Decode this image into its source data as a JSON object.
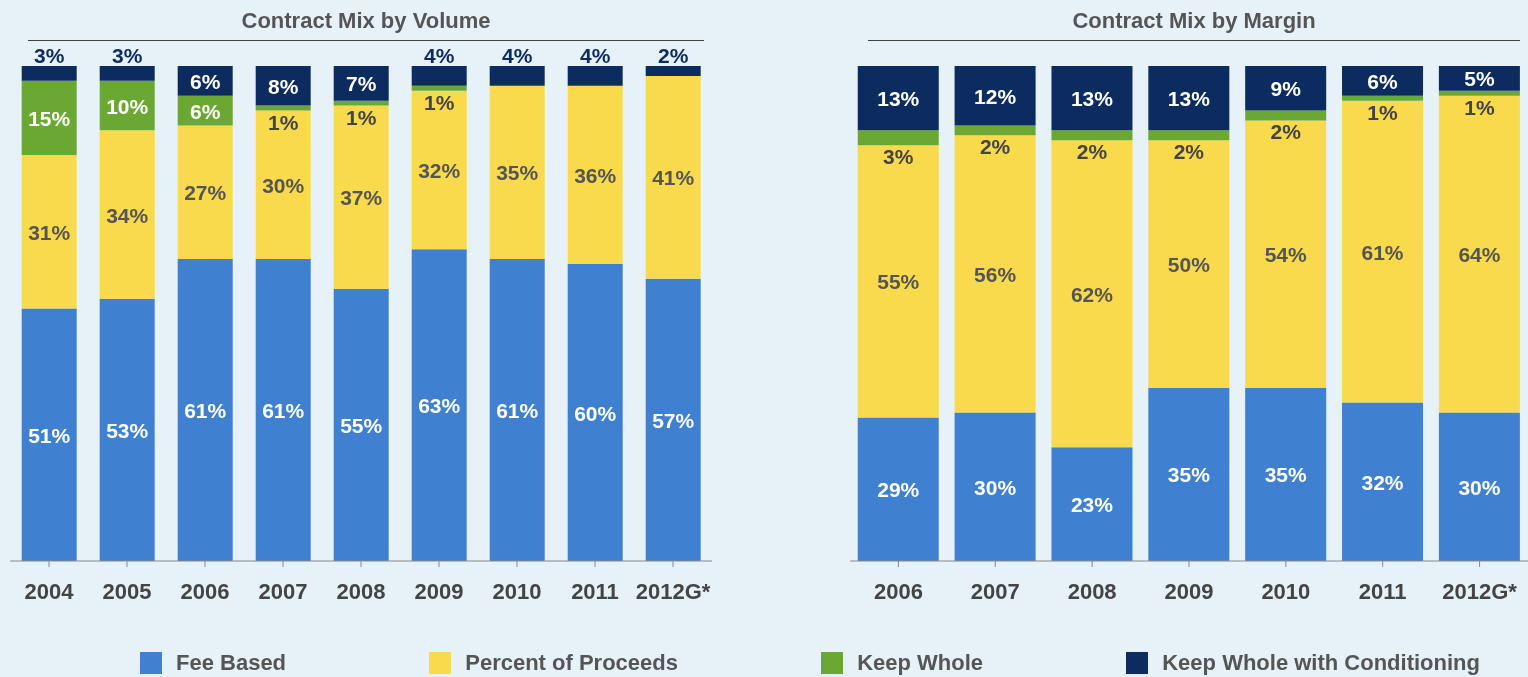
{
  "chart_data": [
    {
      "type": "bar",
      "title": "Contract Mix by Volume",
      "stacked": true,
      "legend": "bottom",
      "tick_labels": "x",
      "ylim": [
        0,
        100
      ],
      "categories": [
        "2004",
        "2005",
        "2006",
        "2007",
        "2008",
        "2009",
        "2010",
        "2011",
        "2012G*"
      ],
      "series": [
        {
          "name": "Fee Based",
          "color": "#3f80d0",
          "values": [
            51,
            53,
            61,
            61,
            55,
            63,
            61,
            60,
            57
          ],
          "value_labels": [
            "51%",
            "53%",
            "61%",
            "61%",
            "55%",
            "63%",
            "61%",
            "60%",
            "57%"
          ]
        },
        {
          "name": "Percent of Proceeds",
          "color": "#f9da4c",
          "values": [
            31,
            34,
            27,
            30,
            37,
            32,
            35,
            36,
            41
          ],
          "value_labels": [
            "31%",
            "34%",
            "27%",
            "30%",
            "37%",
            "32%",
            "35%",
            "36%",
            "41%"
          ]
        },
        {
          "name": "Keep Whole",
          "color": "#6aa833",
          "values": [
            15,
            10,
            6,
            1,
            1,
            1,
            null,
            null,
            null
          ],
          "value_labels": [
            "15%",
            "10%",
            "6%",
            "1%",
            "1%",
            "1%",
            null,
            null,
            null
          ]
        },
        {
          "name": "Keep Whole with Conditioning",
          "color": "#0c2b5e",
          "values": [
            3,
            3,
            6,
            8,
            7,
            4,
            4,
            4,
            2
          ],
          "value_labels": [
            "3%",
            "3%",
            "6%",
            "8%",
            "7%",
            "4%",
            "4%",
            "4%",
            "2%"
          ]
        }
      ]
    },
    {
      "type": "bar",
      "title": "Contract Mix by Margin",
      "stacked": true,
      "tick_labels": "x",
      "ylim": [
        0,
        100
      ],
      "categories": [
        "2006",
        "2007",
        "2008",
        "2009",
        "2010",
        "2011",
        "2012G*"
      ],
      "series": [
        {
          "color": "#3f80d0",
          "values": [
            29,
            30,
            23,
            35,
            35,
            32,
            30
          ],
          "value_labels": [
            "29%",
            "30%",
            "23%",
            "35%",
            "35%",
            "32%",
            "30%"
          ]
        },
        {
          "color": "#f9da4c",
          "values": [
            55,
            56,
            62,
            50,
            54,
            61,
            64
          ],
          "value_labels": [
            "55%",
            "56%",
            "62%",
            "50%",
            "54%",
            "61%",
            "64%"
          ]
        },
        {
          "color": "#6aa833",
          "values": [
            3,
            2,
            2,
            2,
            2,
            1,
            1
          ],
          "value_labels": [
            "3%",
            "2%",
            "2%",
            "2%",
            "2%",
            "1%",
            "1%"
          ]
        },
        {
          "color": "#0c2b5e",
          "values": [
            13,
            12,
            13,
            13,
            9,
            6,
            5
          ],
          "value_labels": [
            "13%",
            "12%",
            "13%",
            "13%",
            "9%",
            "6%",
            "5%"
          ]
        }
      ]
    }
  ]
}
